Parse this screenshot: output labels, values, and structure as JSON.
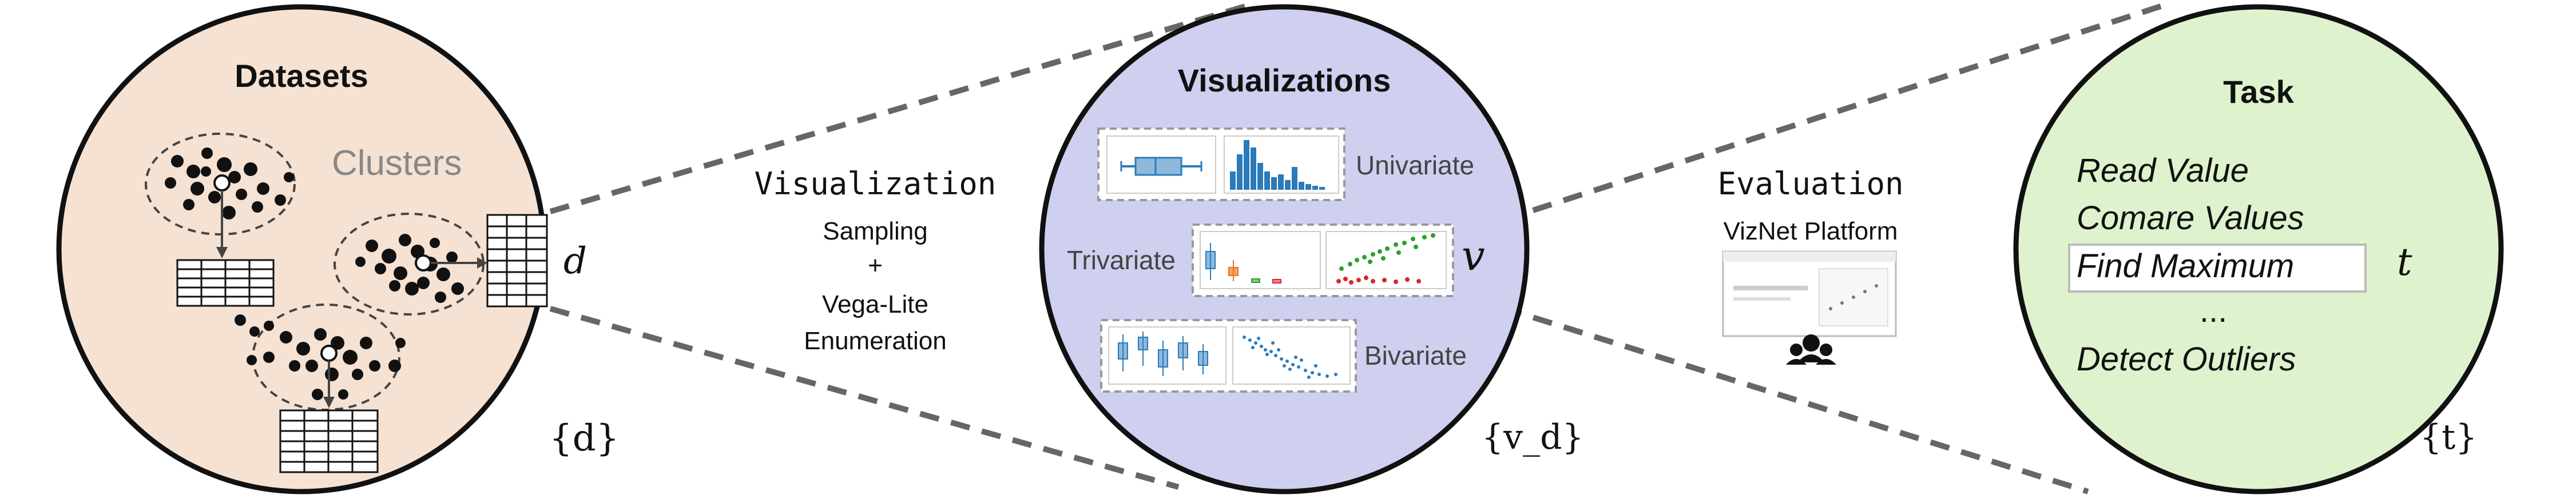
{
  "datasets": {
    "title": "Datasets",
    "clusters_label": "Clusters",
    "d_symbol": "d",
    "set_symbol": "{d}"
  },
  "transition_1": {
    "heading": "Visualization",
    "lines": [
      "Sampling",
      "+",
      "Vega-Lite",
      "Enumeration"
    ]
  },
  "visualizations": {
    "title": "Visualizations",
    "univariate_label": "Univariate",
    "trivariate_label": "Trivariate",
    "bivariate_label": "Bivariate",
    "v_symbol": "v",
    "set_symbol": "{v_d}"
  },
  "transition_2": {
    "heading": "Evaluation",
    "platform": "VizNet Platform",
    "platform_icon": "crowd-workers-icon"
  },
  "task": {
    "title": "Task",
    "items": [
      "Read Value",
      "Comare Values",
      "Find Maximum",
      "...",
      "Detect Outliers"
    ],
    "selected_index": 2,
    "t_symbol": "t",
    "set_symbol": "{t}"
  },
  "colors": {
    "datasets_fill": "#f5e2d3",
    "visualizations_fill": "#cfd0ef",
    "task_fill": "#def3cd",
    "outline": "#111111",
    "dash": "#666666",
    "chart_blue": "#2b7bba",
    "chart_orange": "#e8742a",
    "chart_green": "#2ca02c",
    "chart_red": "#d62728"
  }
}
